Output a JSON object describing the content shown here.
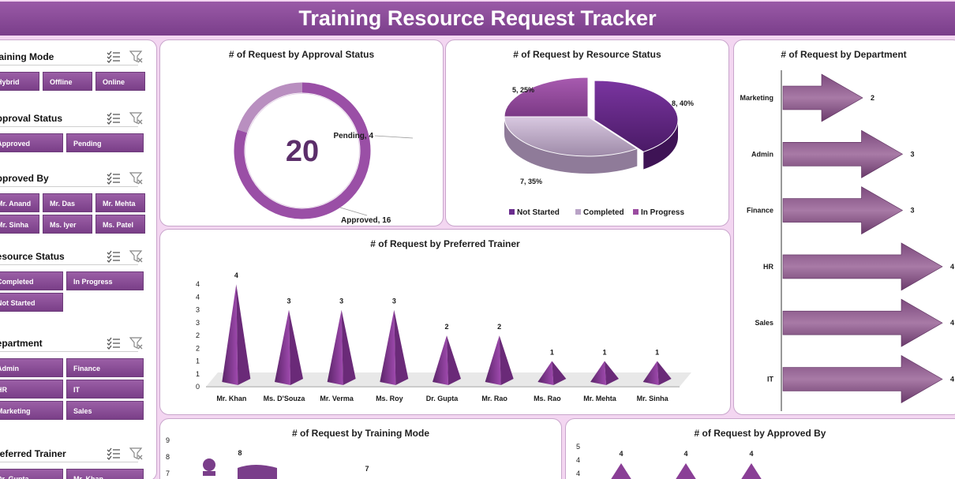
{
  "header": {
    "title": "Training Resource Request Tracker"
  },
  "slicers": [
    {
      "title": "Training Mode",
      "items": [
        "Hybrid",
        "Offline",
        "Online"
      ]
    },
    {
      "title": "Approval Status",
      "items": [
        "Approved",
        "Pending"
      ]
    },
    {
      "title": "Approved By",
      "items": [
        "Mr. Anand",
        "Mr. Das",
        "Mr. Mehta",
        "Mr. Sinha",
        "Ms. Iyer",
        "Ms. Patel"
      ]
    },
    {
      "title": "Resource Status",
      "items": [
        "Completed",
        "In Progress",
        "Not Started"
      ]
    },
    {
      "title": "Department",
      "items": [
        "Admin",
        "Finance",
        "HR",
        "IT",
        "Marketing",
        "Sales"
      ]
    },
    {
      "title": "Preferred Trainer",
      "items": [
        "Dr. Gupta",
        "Mr. Khan"
      ]
    }
  ],
  "chart_data": [
    {
      "type": "pie",
      "title": "# of Request by Approval Status",
      "center_value": "20",
      "categories": [
        "Approved",
        "Pending"
      ],
      "values": [
        16,
        4
      ],
      "data_labels": [
        "Approved, 16",
        "Pending, 4"
      ],
      "colors": [
        "#9a4fa6",
        "#b98fc0"
      ]
    },
    {
      "type": "pie",
      "title": "# of Request by Resource Status",
      "categories": [
        "Not Started",
        "Completed",
        "In Progress"
      ],
      "values": [
        8,
        7,
        5
      ],
      "data_labels": [
        "8, 40%",
        "7, 35%",
        "5, 25%"
      ],
      "legend": [
        "Not Started",
        "Completed",
        "In Progress"
      ],
      "colors": [
        "#6a2c8e",
        "#c8b2d4",
        "#9b4ca1"
      ]
    },
    {
      "type": "bar",
      "title": "# of Request by Department",
      "categories": [
        "Marketing",
        "Admin",
        "Finance",
        "HR",
        "Sales",
        "IT"
      ],
      "values": [
        2,
        3,
        3,
        4,
        4,
        4
      ]
    },
    {
      "type": "bar",
      "title": "# of Request by Preferred Trainer",
      "categories": [
        "Mr. Khan",
        "Ms. D'Souza",
        "Mr. Verma",
        "Ms. Roy",
        "Dr. Gupta",
        "Mr. Rao",
        "Ms. Rao",
        "Mr. Mehta",
        "Mr. Sinha"
      ],
      "values": [
        4,
        3,
        3,
        3,
        2,
        2,
        1,
        1,
        1
      ],
      "yticks": [
        "0",
        "1",
        "1",
        "2",
        "2",
        "3",
        "3",
        "4",
        "4"
      ],
      "ylim": [
        0,
        4.5
      ]
    },
    {
      "type": "bar",
      "title": "# of Request by Training Mode",
      "yticks": [
        "7",
        "8",
        "9"
      ],
      "data_labels": [
        "8",
        "7"
      ],
      "values": [
        8,
        7
      ]
    },
    {
      "type": "bar",
      "title": "# of Request by Approved By",
      "yticks": [
        "4",
        "4",
        "5"
      ],
      "data_labels": [
        "4",
        "4",
        "4"
      ],
      "values": [
        4,
        4,
        4
      ]
    }
  ]
}
